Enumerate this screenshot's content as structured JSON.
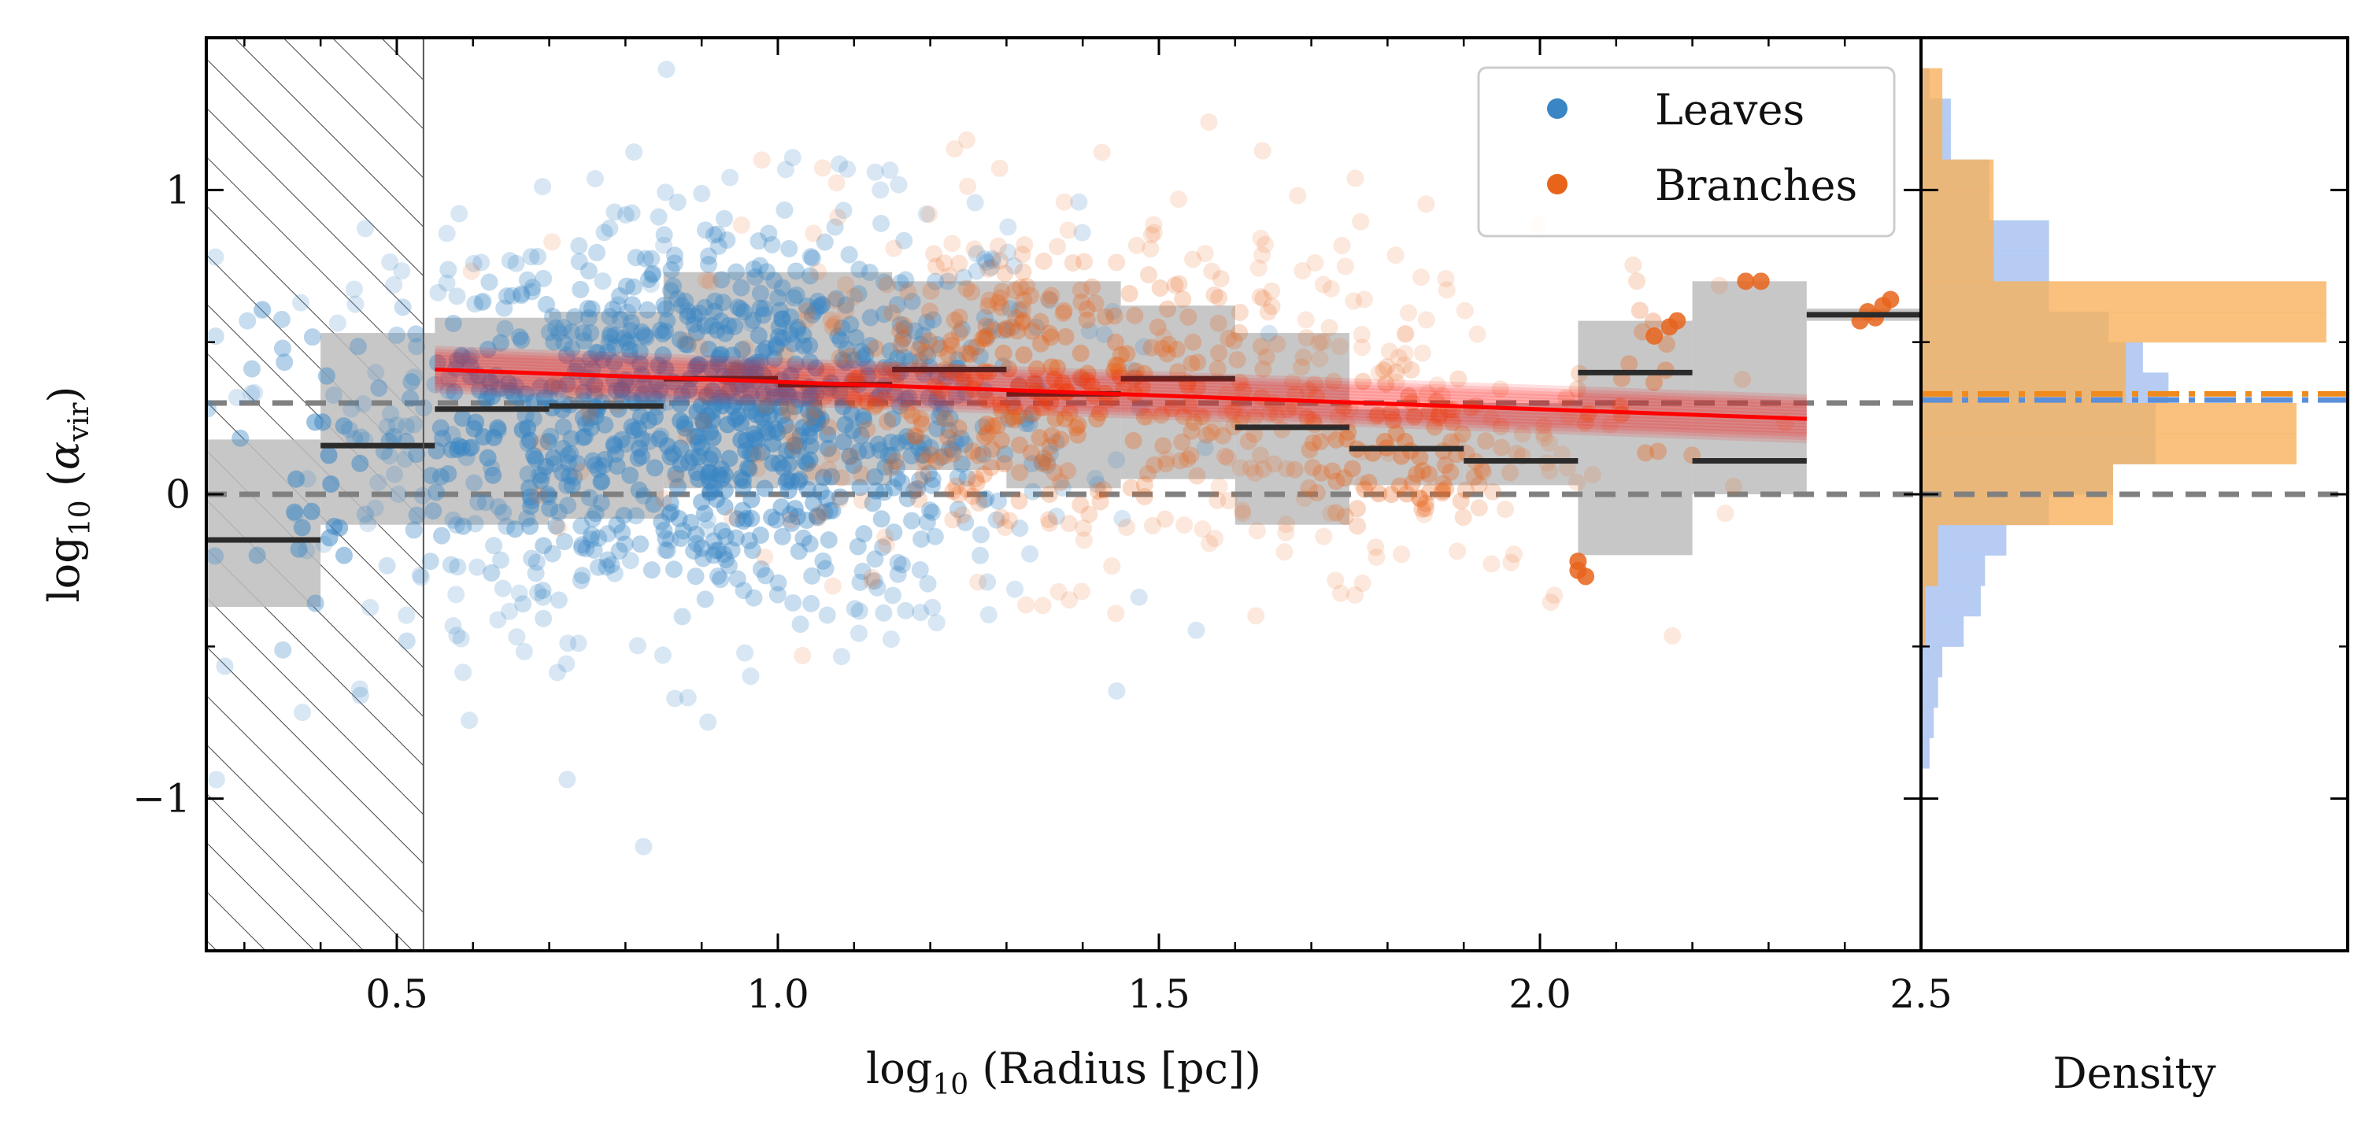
{
  "chart_data": [
    {
      "type": "scatter",
      "xlabel": "log₁₀ (Radius [pc])",
      "ylabel": "log₁₀ (α_vir)",
      "ylabel_main": "log",
      "ylabel_sub": "10",
      "ylabel_alpha": "α",
      "ylabel_alpha_sub": "vir",
      "xlabel_main": "log",
      "xlabel_sub": "10",
      "xlabel_tail": "(Radius [pc])",
      "xlim": [
        0.25,
        2.5
      ],
      "ylim": [
        -1.5,
        1.5
      ],
      "xticks": [
        0.5,
        1.0,
        1.5,
        2.0,
        2.5
      ],
      "xtick_labels": [
        "0.5",
        "1.0",
        "1.5",
        "2.0",
        "2.5"
      ],
      "yticks": [
        -1,
        0,
        1
      ],
      "ytick_labels": [
        "−1",
        "0",
        "1"
      ],
      "grid": false,
      "legend": {
        "placement": "top-right",
        "entries": [
          "Leaves",
          "Branches"
        ]
      },
      "colors": {
        "leaves": "#3a86c4",
        "branches": "#e8641b",
        "fit": "#ff0000",
        "bin_box": "#bdbdbd",
        "median": "#2b2b2b",
        "reference": "#808080"
      },
      "reference_lines_y": [
        0,
        0.3
      ],
      "resolution_limit_x": 0.535,
      "series": [
        {
          "name": "Leaves",
          "clusters": [
            {
              "x_center": 0.95,
              "x_spread": 0.22,
              "y_center": 0.25,
              "y_spread": 0.35,
              "count": 900
            },
            {
              "x_center": 0.65,
              "x_spread": 0.12,
              "y_center": 0.2,
              "y_spread": 0.3,
              "count": 150
            },
            {
              "x_center": 0.4,
              "x_spread": 0.1,
              "y_center": 0.05,
              "y_spread": 0.35,
              "count": 50
            }
          ]
        },
        {
          "name": "Branches",
          "clusters": [
            {
              "x_center": 1.35,
              "x_spread": 0.25,
              "y_center": 0.35,
              "y_spread": 0.3,
              "count": 500
            },
            {
              "x_center": 1.8,
              "x_spread": 0.12,
              "y_center": 0.15,
              "y_spread": 0.2,
              "count": 150
            },
            {
              "x_center": 2.15,
              "x_spread": 0.08,
              "y_center": 0.3,
              "y_spread": 0.3,
              "count": 30
            }
          ],
          "extra_points": [
            {
              "x": 2.27,
              "y": 0.7
            },
            {
              "x": 2.29,
              "y": 0.7
            },
            {
              "x": 2.42,
              "y": 0.57
            },
            {
              "x": 2.44,
              "y": 0.58
            },
            {
              "x": 2.46,
              "y": 0.64
            },
            {
              "x": 2.45,
              "y": 0.62
            },
            {
              "x": 2.43,
              "y": 0.6
            },
            {
              "x": 2.05,
              "y": -0.25
            },
            {
              "x": 2.05,
              "y": -0.22
            },
            {
              "x": 2.06,
              "y": -0.27
            },
            {
              "x": 2.18,
              "y": 0.57
            },
            {
              "x": 2.17,
              "y": 0.55
            },
            {
              "x": 2.15,
              "y": 0.52
            }
          ]
        }
      ],
      "bins": [
        {
          "x_left": 0.25,
          "x_right": 0.4,
          "median": -0.15,
          "q_low": -0.37,
          "q_high": 0.18
        },
        {
          "x_left": 0.4,
          "x_right": 0.55,
          "median": 0.16,
          "q_low": -0.1,
          "q_high": 0.53
        },
        {
          "x_left": 0.55,
          "x_right": 0.7,
          "median": 0.28,
          "q_low": -0.1,
          "q_high": 0.58
        },
        {
          "x_left": 0.7,
          "x_right": 0.85,
          "median": 0.29,
          "q_low": -0.08,
          "q_high": 0.6
        },
        {
          "x_left": 0.85,
          "x_right": 1.0,
          "median": 0.38,
          "q_low": 0.02,
          "q_high": 0.73
        },
        {
          "x_left": 1.0,
          "x_right": 1.15,
          "median": 0.36,
          "q_low": 0.03,
          "q_high": 0.73
        },
        {
          "x_left": 1.15,
          "x_right": 1.3,
          "median": 0.41,
          "q_low": 0.08,
          "q_high": 0.7
        },
        {
          "x_left": 1.3,
          "x_right": 1.45,
          "median": 0.33,
          "q_low": 0.02,
          "q_high": 0.7
        },
        {
          "x_left": 1.45,
          "x_right": 1.6,
          "median": 0.38,
          "q_low": 0.05,
          "q_high": 0.62
        },
        {
          "x_left": 1.6,
          "x_right": 1.75,
          "median": 0.22,
          "q_low": -0.1,
          "q_high": 0.53
        },
        {
          "x_left": 1.75,
          "x_right": 1.9,
          "median": 0.15,
          "q_low": 0.03,
          "q_high": 0.28
        },
        {
          "x_left": 1.9,
          "x_right": 2.05,
          "median": 0.11,
          "q_low": 0.03,
          "q_high": 0.3
        },
        {
          "x_left": 2.05,
          "x_right": 2.2,
          "median": 0.4,
          "q_low": -0.2,
          "q_high": 0.57
        },
        {
          "x_left": 2.2,
          "x_right": 2.35,
          "median": 0.11,
          "q_low": 0.0,
          "q_high": 0.7
        },
        {
          "x_left": 2.35,
          "x_right": 2.5,
          "median": 0.59,
          "q_low": 0.57,
          "q_high": 0.61
        }
      ],
      "fit": {
        "x_start": 0.55,
        "x_end": 2.35,
        "slope": -0.09,
        "intercept": 0.41,
        "uncertainty": 0.06
      }
    },
    {
      "type": "bar",
      "orientation": "horizontal",
      "xlabel": "Density",
      "ylim": [
        -1.5,
        1.5
      ],
      "colors": {
        "leaves": "#aec7f2",
        "branches": "#f7b25c",
        "overlap": "#d4a576",
        "leaves_mean_line": "#5b8fd9",
        "branches_mean_line": "#f08a1c"
      },
      "series": [
        {
          "name": "Leaves",
          "bin_width": 0.1,
          "bins": [
            {
              "y_low": -0.9,
              "density": 0.02
            },
            {
              "y_low": -0.8,
              "density": 0.03
            },
            {
              "y_low": -0.7,
              "density": 0.04
            },
            {
              "y_low": -0.6,
              "density": 0.05
            },
            {
              "y_low": -0.5,
              "density": 0.1
            },
            {
              "y_low": -0.4,
              "density": 0.14
            },
            {
              "y_low": -0.3,
              "density": 0.15
            },
            {
              "y_low": -0.2,
              "density": 0.2
            },
            {
              "y_low": -0.1,
              "density": 0.3
            },
            {
              "y_low": 0.0,
              "density": 0.45
            },
            {
              "y_low": 0.1,
              "density": 0.55
            },
            {
              "y_low": 0.2,
              "density": 0.55
            },
            {
              "y_low": 0.3,
              "density": 0.58
            },
            {
              "y_low": 0.4,
              "density": 0.52
            },
            {
              "y_low": 0.5,
              "density": 0.44
            },
            {
              "y_low": 0.6,
              "density": 0.3
            },
            {
              "y_low": 0.7,
              "density": 0.3
            },
            {
              "y_low": 0.8,
              "density": 0.3
            },
            {
              "y_low": 0.9,
              "density": 0.16
            },
            {
              "y_low": 1.0,
              "density": 0.16
            },
            {
              "y_low": 1.1,
              "density": 0.07
            },
            {
              "y_low": 1.2,
              "density": 0.07
            },
            {
              "y_low": 1.3,
              "density": 0.02
            }
          ]
        },
        {
          "name": "Branches",
          "bin_width": 0.1,
          "bins": [
            {
              "y_low": -0.5,
              "density": 0.01
            },
            {
              "y_low": -0.4,
              "density": 0.01
            },
            {
              "y_low": -0.3,
              "density": 0.04
            },
            {
              "y_low": -0.2,
              "density": 0.04
            },
            {
              "y_low": -0.1,
              "density": 0.45
            },
            {
              "y_low": 0.0,
              "density": 0.45
            },
            {
              "y_low": 0.1,
              "density": 0.88
            },
            {
              "y_low": 0.2,
              "density": 0.88
            },
            {
              "y_low": 0.3,
              "density": 0.48
            },
            {
              "y_low": 0.4,
              "density": 0.48
            },
            {
              "y_low": 0.5,
              "density": 0.95
            },
            {
              "y_low": 0.6,
              "density": 0.95
            },
            {
              "y_low": 0.7,
              "density": 0.17
            },
            {
              "y_low": 0.8,
              "density": 0.17
            },
            {
              "y_low": 0.9,
              "density": 0.17
            },
            {
              "y_low": 1.0,
              "density": 0.17
            },
            {
              "y_low": 1.1,
              "density": 0.05
            },
            {
              "y_low": 1.2,
              "density": 0.05
            },
            {
              "y_low": 1.3,
              "density": 0.05
            }
          ]
        }
      ],
      "mean_lines_y": {
        "leaves": 0.31,
        "branches": 0.33
      },
      "reference_lines_y": [
        0
      ]
    }
  ]
}
